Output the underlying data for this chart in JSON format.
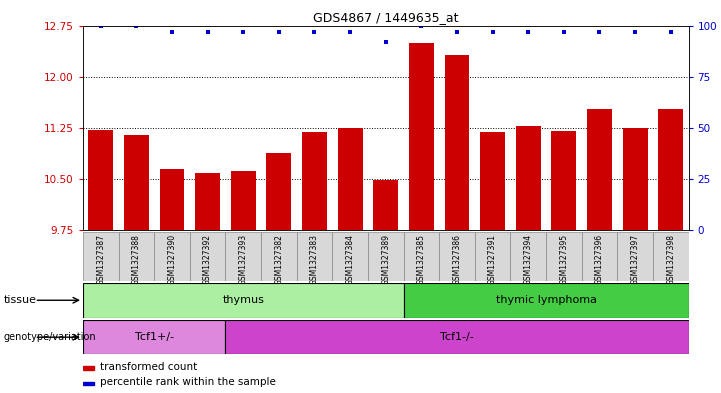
{
  "title": "GDS4867 / 1449635_at",
  "samples": [
    "GSM1327387",
    "GSM1327388",
    "GSM1327390",
    "GSM1327392",
    "GSM1327393",
    "GSM1327382",
    "GSM1327383",
    "GSM1327384",
    "GSM1327389",
    "GSM1327385",
    "GSM1327386",
    "GSM1327391",
    "GSM1327394",
    "GSM1327395",
    "GSM1327396",
    "GSM1327397",
    "GSM1327398"
  ],
  "bar_values": [
    11.22,
    11.14,
    10.65,
    10.58,
    10.62,
    10.88,
    11.18,
    11.24,
    10.48,
    12.5,
    12.32,
    11.18,
    11.28,
    11.2,
    11.52,
    11.25,
    11.52
  ],
  "dot_right_values": [
    100,
    100,
    97,
    97,
    97,
    97,
    97,
    97,
    92,
    100,
    97,
    97,
    97,
    97,
    97,
    97,
    97
  ],
  "ylim_left": [
    9.75,
    12.75
  ],
  "ylim_right": [
    0,
    100
  ],
  "yticks_left": [
    9.75,
    10.5,
    11.25,
    12.0,
    12.75
  ],
  "yticks_right": [
    0,
    25,
    50,
    75,
    100
  ],
  "bar_color": "#cc0000",
  "dot_color": "#0000cc",
  "tissue_groups": [
    {
      "label": "thymus",
      "start": 0,
      "end": 9,
      "color": "#aaf0a0"
    },
    {
      "label": "thymic lymphoma",
      "start": 9,
      "end": 17,
      "color": "#44cc44"
    }
  ],
  "genotype_groups": [
    {
      "label": "Tcf1+/-",
      "start": 0,
      "end": 4,
      "color": "#dd88dd"
    },
    {
      "label": "Tcf1-/-",
      "start": 4,
      "end": 17,
      "color": "#cc44cc"
    }
  ],
  "tick_label_color_left": "#cc0000",
  "tick_label_color_right": "#0000cc"
}
